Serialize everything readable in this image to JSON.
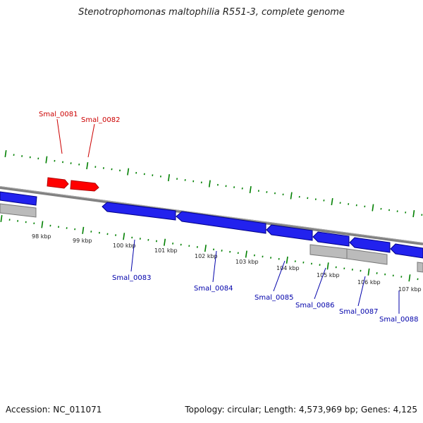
{
  "title": "Stenotrophomonas maltophilia R551-3, complete genome",
  "footer": {
    "accession": "Accession: NC_011071",
    "summary": "Topology: circular; Length: 4,573,969 bp; Genes: 4,125"
  },
  "colors": {
    "forward_gene": "#ff0000",
    "reverse_gene": "#0000ff",
    "other_feature": "#bbbbbb",
    "backbone": "#808080",
    "ticks": "#008000",
    "forward_label": "#cc0000",
    "reverse_label": "#0000aa"
  },
  "kbp_labels": [
    "98 kbp",
    "99 kbp",
    "100 kbp",
    "101 kbp",
    "102 kbp",
    "103 kbp",
    "104 kbp",
    "105 kbp",
    "106 kbp",
    "107 kbp"
  ],
  "forward_genes": [
    "Smal_0081",
    "Smal_0082"
  ],
  "reverse_genes": [
    "Smal_0083",
    "Smal_0084",
    "Smal_0085",
    "Smal_0086",
    "Smal_0087",
    "Smal_0088"
  ]
}
